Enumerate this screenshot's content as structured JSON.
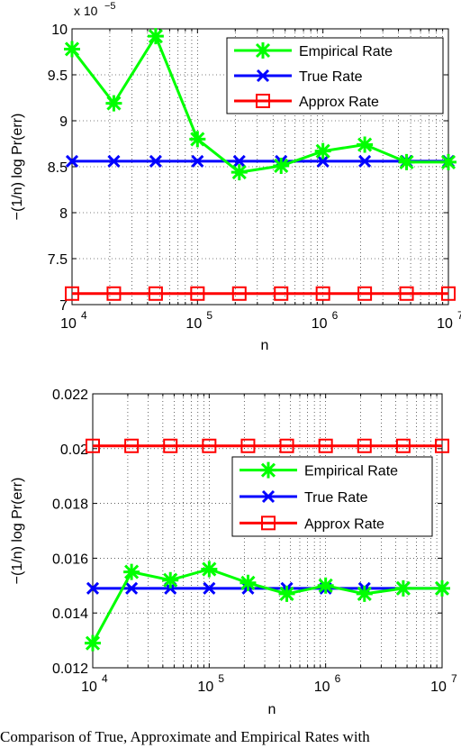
{
  "caption": "Comparison of True, Approximate and Empirical Rates with",
  "chart_data": [
    {
      "type": "line",
      "title": "",
      "xlabel": "n",
      "ylabel": "−(1/n) log Pr(err)",
      "xscale": "log",
      "xlim": [
        10000,
        10000000
      ],
      "ylim": [
        7,
        10
      ],
      "y_multiplier": "x 10",
      "y_multiplier_exp": "−5",
      "x_ticks": [
        10000,
        100000,
        1000000,
        10000000
      ],
      "x_tick_base": "10",
      "x_tick_exps": [
        "4",
        "5",
        "6",
        "7"
      ],
      "y_ticks": [
        7,
        7.5,
        8,
        8.5,
        9,
        9.5,
        10
      ],
      "y_tick_labels": [
        "7",
        "7.5",
        "8",
        "8.5",
        "9",
        "9.5",
        "10"
      ],
      "grid": true,
      "legend_position": "top-right",
      "x": [
        10000,
        21544,
        46416,
        100000,
        215443,
        464159,
        1000000,
        2154435,
        4641589,
        10000000
      ],
      "series": [
        {
          "name": "Empirical Rate",
          "color": "#00ff00",
          "marker": "asterisk",
          "values": [
            9.78,
            9.19,
            9.92,
            8.8,
            8.44,
            8.51,
            8.67,
            8.74,
            8.55,
            8.55
          ]
        },
        {
          "name": "True Rate",
          "color": "#0000ff",
          "marker": "x",
          "values": [
            8.56,
            8.56,
            8.56,
            8.56,
            8.56,
            8.56,
            8.56,
            8.56,
            8.56,
            8.56
          ]
        },
        {
          "name": "Approx Rate",
          "color": "#ff0000",
          "marker": "square",
          "values": [
            7.12,
            7.12,
            7.12,
            7.12,
            7.12,
            7.12,
            7.12,
            7.12,
            7.12,
            7.12
          ]
        }
      ]
    },
    {
      "type": "line",
      "title": "",
      "xlabel": "n",
      "ylabel": "−(1/n) log Pr(err)",
      "xscale": "log",
      "xlim": [
        10000,
        10000000
      ],
      "ylim": [
        0.012,
        0.022
      ],
      "x_ticks": [
        10000,
        100000,
        1000000,
        10000000
      ],
      "x_tick_base": "10",
      "x_tick_exps": [
        "4",
        "5",
        "6",
        "7"
      ],
      "y_ticks": [
        0.012,
        0.014,
        0.016,
        0.018,
        0.02,
        0.022
      ],
      "y_tick_labels": [
        "0.012",
        "0.014",
        "0.016",
        "0.018",
        "0.02",
        "0.022"
      ],
      "grid": true,
      "legend_position": "center-right",
      "x": [
        10000,
        21544,
        46416,
        100000,
        215443,
        464159,
        1000000,
        2154435,
        4641589,
        10000000
      ],
      "series": [
        {
          "name": "Empirical Rate",
          "color": "#00ff00",
          "marker": "asterisk",
          "values": [
            0.0129,
            0.0155,
            0.0152,
            0.0156,
            0.0151,
            0.0147,
            0.015,
            0.0147,
            0.0149,
            0.0149
          ]
        },
        {
          "name": "True Rate",
          "color": "#0000ff",
          "marker": "x",
          "values": [
            0.0149,
            0.0149,
            0.0149,
            0.0149,
            0.0149,
            0.0149,
            0.0149,
            0.0149,
            0.0149,
            0.0149
          ]
        },
        {
          "name": "Approx Rate",
          "color": "#ff0000",
          "marker": "square",
          "values": [
            0.0201,
            0.0201,
            0.0201,
            0.0201,
            0.0201,
            0.0201,
            0.0201,
            0.0201,
            0.0201,
            0.0201
          ]
        }
      ]
    }
  ]
}
